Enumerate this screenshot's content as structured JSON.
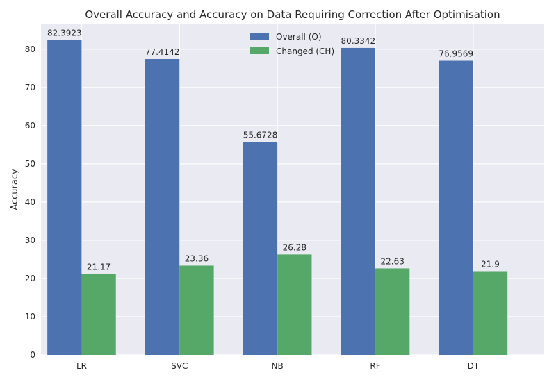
{
  "chart_data": {
    "type": "bar",
    "title": "Overall Accuracy and Accuracy on Data Requiring Correction After Optimisation",
    "xlabel": "",
    "ylabel": "Accuracy",
    "categories": [
      "LR",
      "SVC",
      "NB",
      "RF",
      "DT"
    ],
    "series": [
      {
        "name": "Overall (O)",
        "color": "#4c72b0",
        "values": [
          82.3923,
          77.4142,
          55.6728,
          80.3342,
          76.9569
        ],
        "labels": [
          "82.3923",
          "77.4142",
          "55.6728",
          "80.3342",
          "76.9569"
        ]
      },
      {
        "name": "Changed (CH)",
        "color": "#55a868",
        "values": [
          21.17,
          23.36,
          26.28,
          22.63,
          21.9
        ],
        "labels": [
          "21.17",
          "23.36",
          "26.28",
          "22.63",
          "21.9"
        ]
      }
    ],
    "ylim": [
      0,
      86.5
    ],
    "yticks": [
      0,
      10,
      20,
      30,
      40,
      50,
      60,
      70,
      80
    ],
    "grid": true,
    "legend_position": "top-center",
    "background": "#eaeaf2"
  }
}
